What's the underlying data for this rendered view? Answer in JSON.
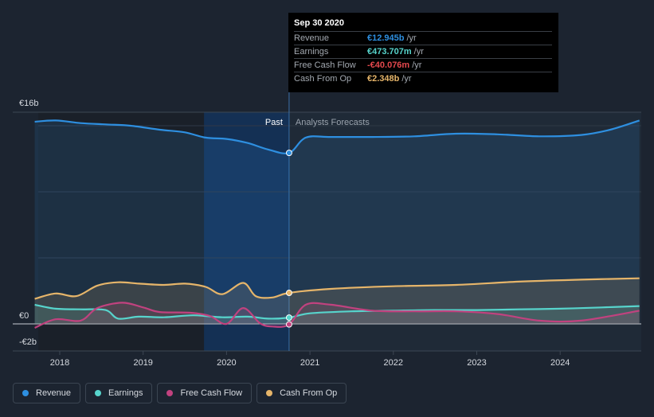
{
  "chart_data": {
    "type": "line",
    "currency": "€",
    "y_axis_unit": "billions",
    "ylim": [
      -2,
      16
    ],
    "xlim": [
      2017.7,
      2024.95
    ],
    "y_tick_labels": [
      {
        "value": 16,
        "label": "€16b"
      },
      {
        "value": 0,
        "label": "€0"
      },
      {
        "value": -2,
        "label": "-€2b"
      }
    ],
    "x_ticks": [
      {
        "value": 2018,
        "label": "2018"
      },
      {
        "value": 2019,
        "label": "2019"
      },
      {
        "value": 2020,
        "label": "2020"
      },
      {
        "value": 2021,
        "label": "2021"
      },
      {
        "value": 2022,
        "label": "2022"
      },
      {
        "value": 2023,
        "label": "2023"
      },
      {
        "value": 2024,
        "label": "2024"
      }
    ],
    "past_end": 2020.75,
    "highlight_start": 2019.73,
    "past_label": "Past",
    "forecast_label": "Analysts Forecasts",
    "series": [
      {
        "name": "Revenue",
        "color": "#2e8fe0",
        "fill": true,
        "points": [
          [
            2017.7,
            15.3
          ],
          [
            2017.95,
            15.4
          ],
          [
            2018.25,
            15.2
          ],
          [
            2018.55,
            15.1
          ],
          [
            2018.85,
            15.0
          ],
          [
            2019.2,
            14.7
          ],
          [
            2019.5,
            14.5
          ],
          [
            2019.75,
            14.1
          ],
          [
            2020.0,
            14.0
          ],
          [
            2020.25,
            13.7
          ],
          [
            2020.5,
            13.2
          ],
          [
            2020.75,
            12.945
          ],
          [
            2020.95,
            14.1
          ],
          [
            2021.25,
            14.15
          ],
          [
            2021.75,
            14.15
          ],
          [
            2022.25,
            14.2
          ],
          [
            2022.75,
            14.4
          ],
          [
            2023.25,
            14.35
          ],
          [
            2023.75,
            14.2
          ],
          [
            2024.25,
            14.3
          ],
          [
            2024.6,
            14.7
          ],
          [
            2024.95,
            15.4
          ]
        ]
      },
      {
        "name": "Earnings",
        "color": "#57d4cc",
        "fill": true,
        "points": [
          [
            2017.7,
            1.45
          ],
          [
            2017.95,
            1.15
          ],
          [
            2018.25,
            1.1
          ],
          [
            2018.55,
            1.05
          ],
          [
            2018.7,
            0.4
          ],
          [
            2018.95,
            0.55
          ],
          [
            2019.25,
            0.5
          ],
          [
            2019.6,
            0.65
          ],
          [
            2019.95,
            0.5
          ],
          [
            2020.25,
            0.55
          ],
          [
            2020.5,
            0.4
          ],
          [
            2020.75,
            0.474
          ],
          [
            2021.0,
            0.8
          ],
          [
            2021.5,
            0.95
          ],
          [
            2022.0,
            1.0
          ],
          [
            2022.5,
            1.05
          ],
          [
            2023.0,
            1.05
          ],
          [
            2023.5,
            1.1
          ],
          [
            2024.0,
            1.15
          ],
          [
            2024.5,
            1.25
          ],
          [
            2024.95,
            1.35
          ]
        ]
      },
      {
        "name": "Free Cash Flow",
        "color": "#c1427f",
        "fill": true,
        "points": [
          [
            2017.7,
            -0.3
          ],
          [
            2017.95,
            0.35
          ],
          [
            2018.25,
            0.25
          ],
          [
            2018.45,
            1.2
          ],
          [
            2018.75,
            1.6
          ],
          [
            2019.0,
            1.25
          ],
          [
            2019.2,
            0.9
          ],
          [
            2019.55,
            0.85
          ],
          [
            2019.8,
            0.6
          ],
          [
            2020.0,
            0.0
          ],
          [
            2020.2,
            1.2
          ],
          [
            2020.4,
            0.05
          ],
          [
            2020.55,
            -0.2
          ],
          [
            2020.75,
            -0.04
          ],
          [
            2020.95,
            1.45
          ],
          [
            2021.25,
            1.45
          ],
          [
            2021.75,
            1.0
          ],
          [
            2022.25,
            0.95
          ],
          [
            2022.75,
            0.95
          ],
          [
            2023.25,
            0.75
          ],
          [
            2023.75,
            0.25
          ],
          [
            2024.25,
            0.25
          ],
          [
            2024.95,
            1.0
          ]
        ]
      },
      {
        "name": "Cash From Op",
        "color": "#e6b56a",
        "fill": true,
        "points": [
          [
            2017.7,
            1.9
          ],
          [
            2017.95,
            2.3
          ],
          [
            2018.2,
            2.1
          ],
          [
            2018.45,
            2.9
          ],
          [
            2018.7,
            3.15
          ],
          [
            2018.95,
            3.05
          ],
          [
            2019.25,
            2.95
          ],
          [
            2019.5,
            3.05
          ],
          [
            2019.75,
            2.8
          ],
          [
            2019.95,
            2.25
          ],
          [
            2020.2,
            3.1
          ],
          [
            2020.35,
            2.1
          ],
          [
            2020.55,
            2.0
          ],
          [
            2020.75,
            2.348
          ],
          [
            2021.25,
            2.65
          ],
          [
            2022.0,
            2.85
          ],
          [
            2022.75,
            2.95
          ],
          [
            2023.5,
            3.2
          ],
          [
            2024.25,
            3.35
          ],
          [
            2024.95,
            3.45
          ]
        ]
      }
    ]
  },
  "tooltip": {
    "date": "Sep 30 2020",
    "rows": [
      {
        "name": "Revenue",
        "value": "€12.945b",
        "unit": "/yr",
        "color": "#2e8fe0"
      },
      {
        "name": "Earnings",
        "value": "€473.707m",
        "unit": "/yr",
        "color": "#57d4cc"
      },
      {
        "name": "Free Cash Flow",
        "value": "-€40.076m",
        "unit": "/yr",
        "color": "#e5484d"
      },
      {
        "name": "Cash From Op",
        "value": "€2.348b",
        "unit": "/yr",
        "color": "#e6b56a"
      }
    ]
  },
  "legend": [
    {
      "label": "Revenue",
      "color": "#2e8fe0"
    },
    {
      "label": "Earnings",
      "color": "#57d4cc"
    },
    {
      "label": "Free Cash Flow",
      "color": "#c1427f"
    },
    {
      "label": "Cash From Op",
      "color": "#e6b56a"
    }
  ]
}
